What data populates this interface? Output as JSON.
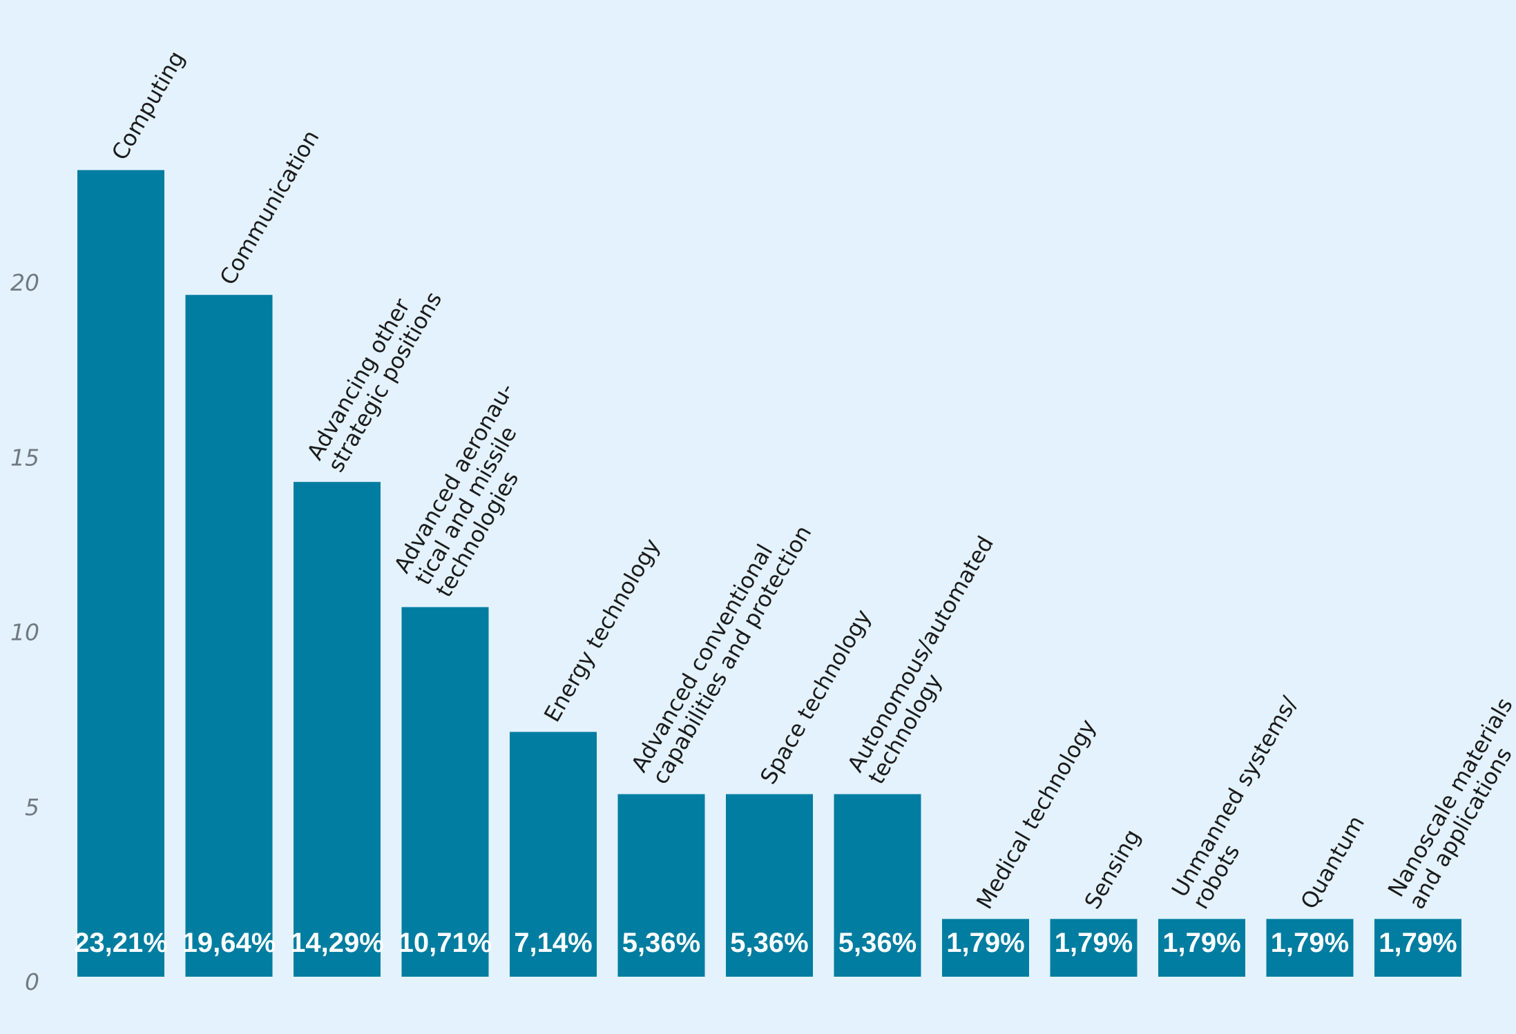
{
  "chart_data": {
    "type": "bar",
    "categories": [
      [
        "Computing"
      ],
      [
        "Communication"
      ],
      [
        "Advancing other",
        "strategic positions"
      ],
      [
        "Advanced aeronau-",
        "tical and missile",
        "technologies"
      ],
      [
        "Energy technology"
      ],
      [
        "Advanced conventional",
        "capabilities and protection"
      ],
      [
        "Space technology"
      ],
      [
        "Autonomous/automated",
        "technology"
      ],
      [
        "Medical technology"
      ],
      [
        "Sensing"
      ],
      [
        "Unmanned systems/",
        "robots"
      ],
      [
        "Quantum"
      ],
      [
        "Nanoscale materials",
        "and applications"
      ]
    ],
    "values": [
      23.21,
      19.64,
      14.29,
      10.71,
      7.14,
      5.36,
      5.36,
      5.36,
      1.79,
      1.79,
      1.79,
      1.79,
      1.79
    ],
    "value_labels": [
      "23,21%",
      "19,64%",
      "14,29%",
      "10,71%",
      "7,14%",
      "5,36%",
      "5,36%",
      "5,36%",
      "1,79%",
      "1,79%",
      "1,79%",
      "1,79%",
      "1,79%"
    ],
    "yticks": [
      "0",
      "5",
      "10",
      "15",
      "20"
    ],
    "ylim": [
      0,
      25
    ],
    "grid": false,
    "legend": "none",
    "colors": {
      "bar": "#007da0",
      "background": "#e3f2fc"
    }
  }
}
